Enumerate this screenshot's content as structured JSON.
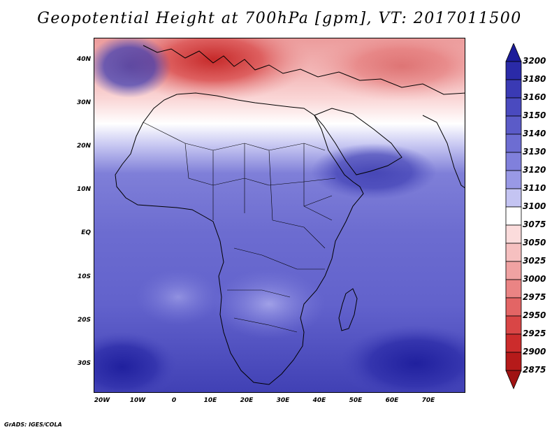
{
  "title": "Geopotential Height at 700hPa [gpm], VT: 2017011500",
  "credit": "GrADS: IGES/COLA",
  "lat_labels": [
    "40N",
    "30N",
    "20N",
    "10N",
    "EQ",
    "10S",
    "20S",
    "30S"
  ],
  "lon_labels": [
    "20W",
    "10W",
    "0",
    "10E",
    "20E",
    "30E",
    "40E",
    "50E",
    "60E",
    "70E"
  ],
  "colorbar": {
    "levels": [
      "3200",
      "3180",
      "3160",
      "3150",
      "3140",
      "3130",
      "3120",
      "3110",
      "3100",
      "3075",
      "3050",
      "3025",
      "3000",
      "2975",
      "2950",
      "2925",
      "2900",
      "2875"
    ],
    "colors": [
      "#1c1c9a",
      "#2a2aa8",
      "#3a3ab4",
      "#4a4abf",
      "#5b5bc8",
      "#6d6dd2",
      "#8080dc",
      "#9999e6",
      "#c4c4f2",
      "#ffffff",
      "#fbdcdc",
      "#f6c0c0",
      "#f0a2a2",
      "#ea8484",
      "#e36565",
      "#d94646",
      "#cc2c2c",
      "#b51a1a",
      "#a01313"
    ]
  },
  "map": {
    "ocean_north_color": "#f2a0a0",
    "ocean_south_color": "#4545b8",
    "land_mid_color": "#5b5bcc"
  }
}
